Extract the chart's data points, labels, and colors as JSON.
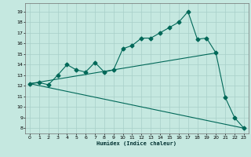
{
  "bg_color": "#c5e8e0",
  "grid_color": "#a8cfc8",
  "line_color": "#006858",
  "xlabel": "Humidex (Indice chaleur)",
  "ylabel_ticks": [
    8,
    9,
    10,
    11,
    12,
    13,
    14,
    15,
    16,
    17,
    18,
    19
  ],
  "xlim": [
    -0.5,
    23.5
  ],
  "ylim": [
    7.5,
    19.8
  ],
  "xticks": [
    0,
    1,
    2,
    3,
    4,
    5,
    6,
    7,
    8,
    9,
    10,
    11,
    12,
    13,
    14,
    15,
    16,
    17,
    18,
    19,
    20,
    21,
    22,
    23
  ],
  "line1_x": [
    0,
    1,
    2,
    3,
    4,
    5,
    6,
    7,
    8,
    9,
    10,
    11,
    12,
    13,
    14,
    15,
    16,
    17,
    18,
    19,
    20,
    21,
    22,
    23
  ],
  "line1_y": [
    12.2,
    12.3,
    12.1,
    13.0,
    14.0,
    13.5,
    13.3,
    14.2,
    13.3,
    13.5,
    15.5,
    15.8,
    16.5,
    16.5,
    17.0,
    17.5,
    18.0,
    19.0,
    16.4,
    16.5,
    15.1,
    10.9,
    9.0,
    8.0
  ],
  "line2_x": [
    0,
    20
  ],
  "line2_y": [
    12.2,
    15.1
  ],
  "line3_x": [
    0,
    23
  ],
  "line3_y": [
    12.2,
    8.0
  ],
  "marker_size": 2.5,
  "lw": 0.8
}
